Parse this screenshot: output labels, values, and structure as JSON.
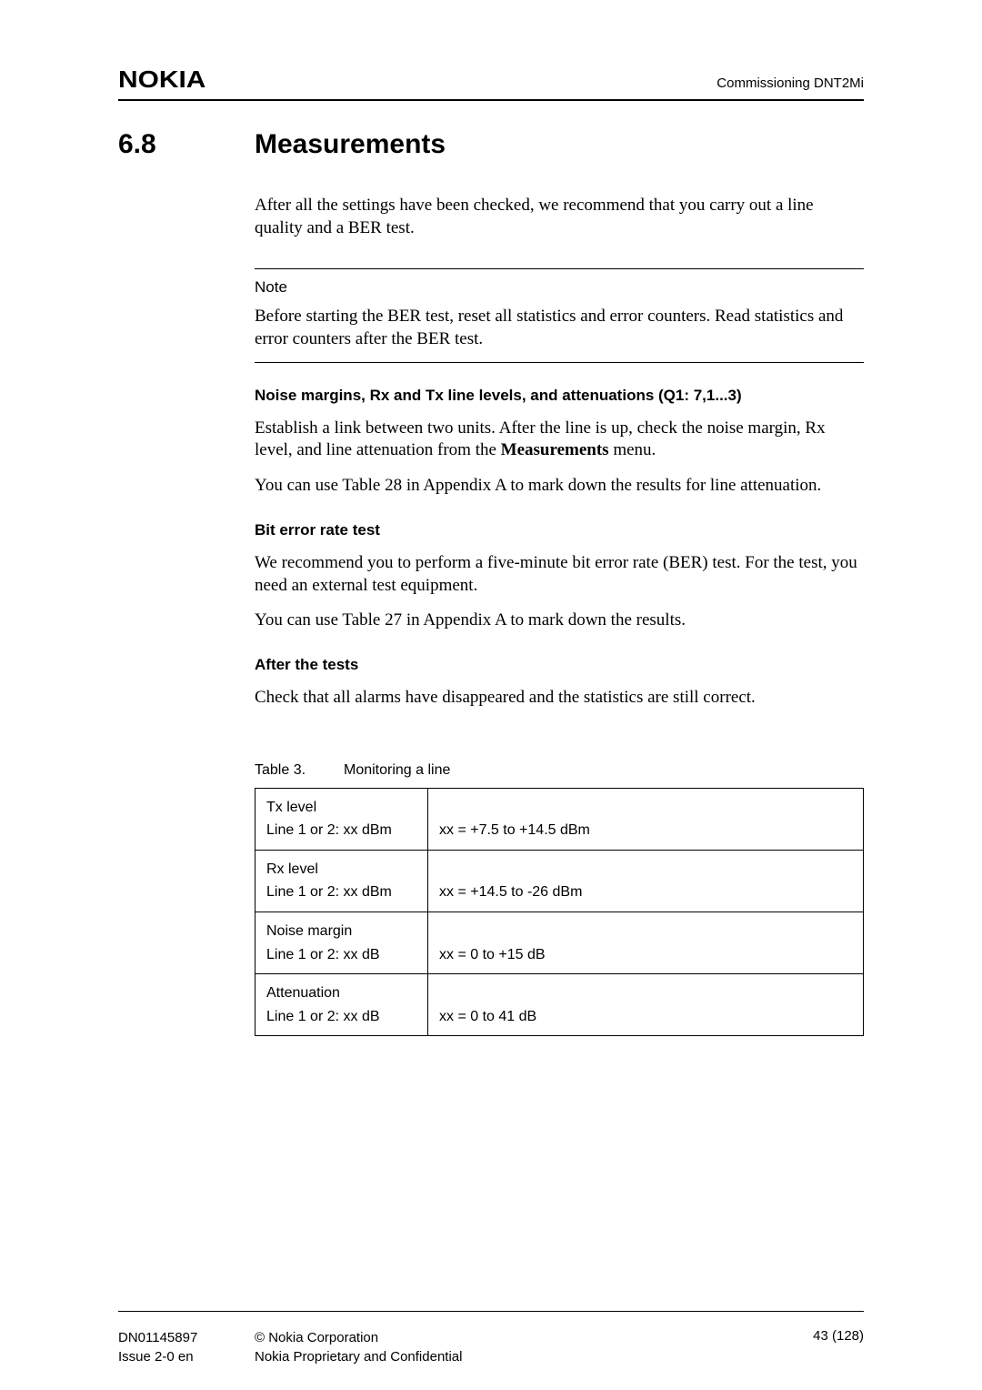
{
  "header": {
    "logo": "NOKIA",
    "right": "Commissioning DNT2Mi"
  },
  "section": {
    "number": "6.8",
    "title": "Measurements"
  },
  "intro": "After all the settings have been checked, we recommend that you carry out a line quality and a BER test.",
  "note": {
    "label": "Note",
    "text": "Before starting the BER test, reset all statistics and error counters. Read statistics and error counters after the BER test."
  },
  "sub1": {
    "heading": "Noise margins, Rx and Tx line levels, and attenuations (Q1: 7,1...3)",
    "p1_a": "Establish a link between two units. After the line is up, check the noise margin, Rx level, and line attenuation from the ",
    "p1_bold": "Measurements",
    "p1_b": " menu.",
    "p2": "You can use Table 28 in Appendix A to mark down the results for line attenuation."
  },
  "sub2": {
    "heading": "Bit error rate test",
    "p1": "We recommend you to perform a five-minute bit error rate (BER) test. For the test, you need an external test equipment.",
    "p2": "You can use Table 27 in Appendix A to mark down the results."
  },
  "sub3": {
    "heading": "After the tests",
    "p1": "Check that all alarms have disappeared and the statistics are still correct."
  },
  "table": {
    "caption_num": "Table 3.",
    "caption_title": "Monitoring a line",
    "rows": [
      {
        "c1a": "Tx level",
        "c1b": "Line 1 or 2: xx dBm",
        "c2": "xx = +7.5 to +14.5 dBm"
      },
      {
        "c1a": "Rx level",
        "c1b": "Line 1 or 2: xx dBm",
        "c2": "xx = +14.5 to -26 dBm"
      },
      {
        "c1a": "Noise margin",
        "c1b": "Line 1 or 2: xx dB",
        "c2": "xx = 0 to +15 dB"
      },
      {
        "c1a": "Attenuation",
        "c1b": "Line 1 or 2: xx dB",
        "c2": "xx = 0 to 41 dB"
      }
    ]
  },
  "footer": {
    "left1": "DN01145897",
    "left2": "Issue 2-0 en",
    "center1": "© Nokia Corporation",
    "center2": "Nokia Proprietary and Confidential",
    "right": "43 (128)"
  }
}
